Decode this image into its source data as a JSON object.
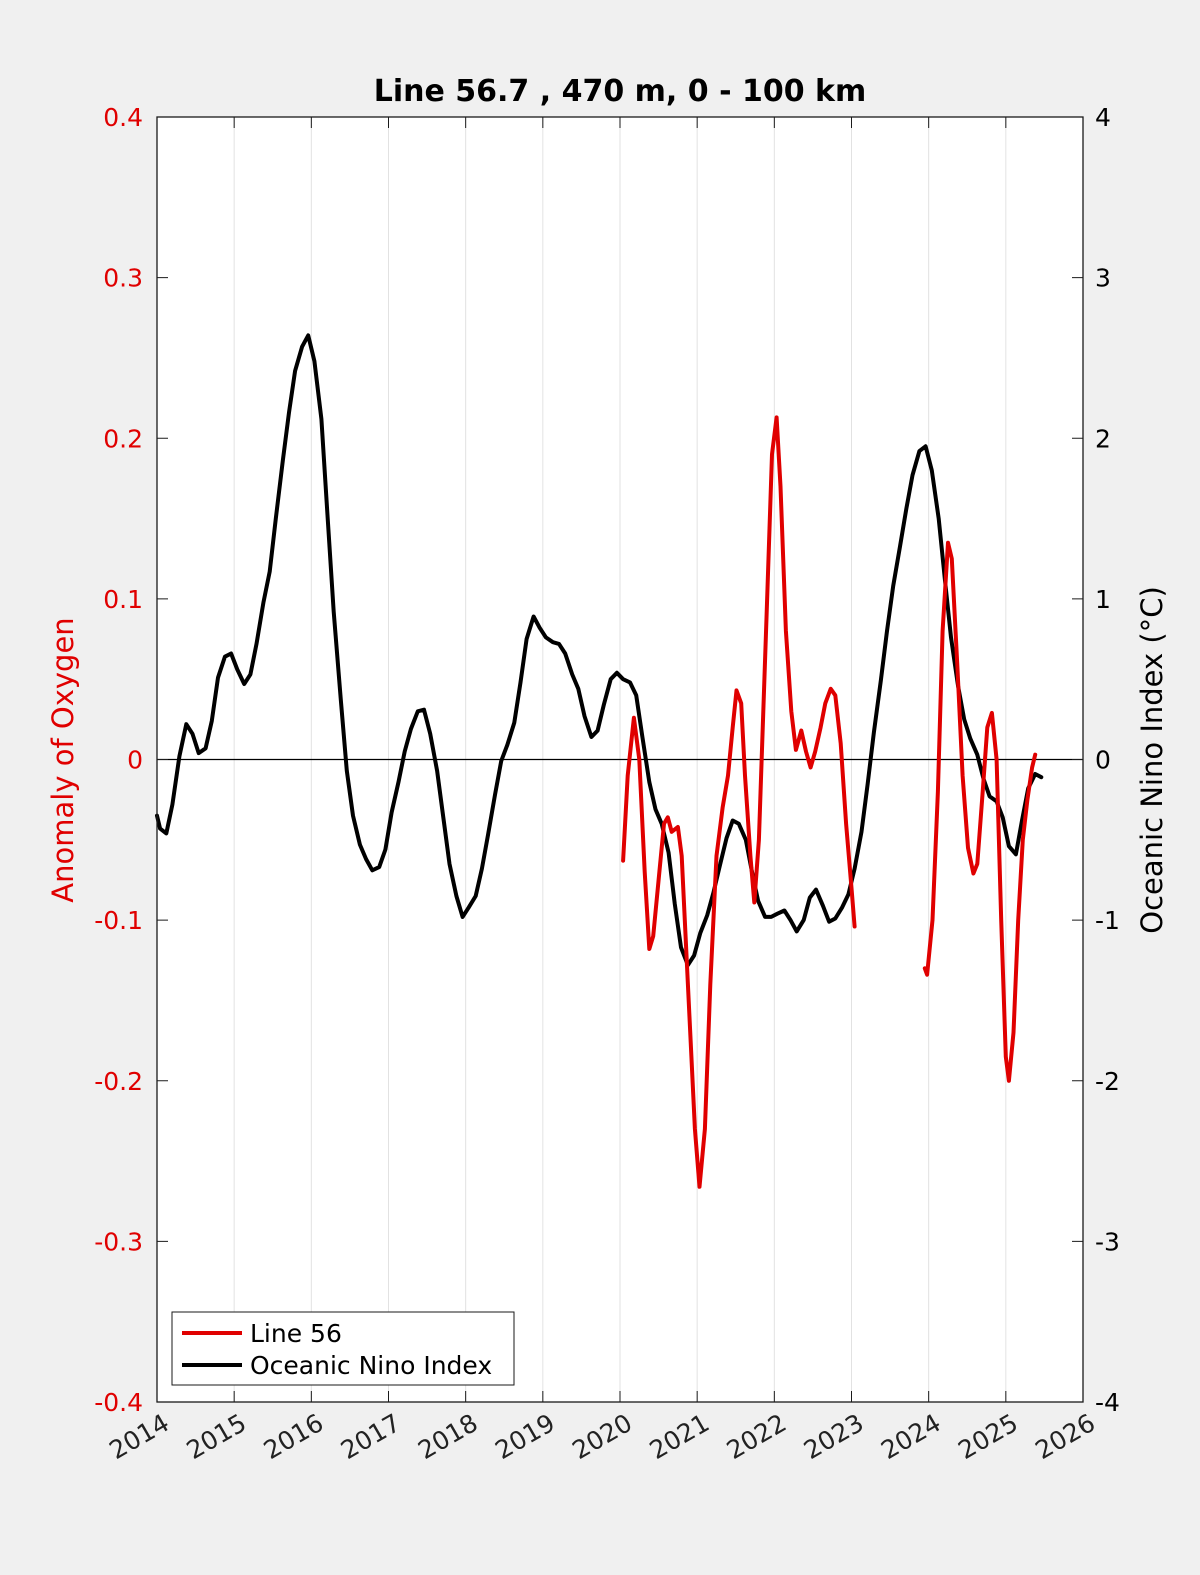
{
  "chart_data": {
    "type": "line",
    "title": "Line 56.7 , 470 m, 0 - 100 km",
    "ylabel_left": "Anomaly of Oxygen",
    "ylabel_right": "Oceanic Nino Index (°C)",
    "xlim": [
      2014,
      2026
    ],
    "ylim_left": [
      -0.4,
      0.4
    ],
    "ylim_right": [
      -4,
      4
    ],
    "x_ticks": [
      "2014",
      "2015",
      "2016",
      "2017",
      "2018",
      "2019",
      "2020",
      "2021",
      "2022",
      "2023",
      "2024",
      "2025",
      "2026"
    ],
    "y_left_ticks": [
      "-0.4",
      "-0.3",
      "-0.2",
      "-0.1",
      "0",
      "0.1",
      "0.2",
      "0.3",
      "0.4"
    ],
    "y_right_ticks": [
      "-4",
      "-3",
      "-2",
      "-1",
      "0",
      "1",
      "2",
      "3",
      "4"
    ],
    "grid": "vertical",
    "zero_line": true,
    "legend_position": "bottom-left",
    "colors": {
      "line56": "#e00000",
      "oni": "#000000",
      "left_axis": "#e00000"
    },
    "series": [
      {
        "name": "Line 56",
        "axis": "left",
        "color": "#e00000",
        "segments": [
          [
            [
              2020.04,
              -0.063
            ],
            [
              2020.1,
              -0.01
            ],
            [
              2020.18,
              0.026
            ],
            [
              2020.25,
              0.0
            ],
            [
              2020.32,
              -0.07
            ],
            [
              2020.38,
              -0.118
            ],
            [
              2020.43,
              -0.11
            ],
            [
              2020.5,
              -0.075
            ],
            [
              2020.57,
              -0.04
            ],
            [
              2020.62,
              -0.036
            ],
            [
              2020.67,
              -0.045
            ],
            [
              2020.75,
              -0.042
            ],
            [
              2020.8,
              -0.06
            ],
            [
              2020.88,
              -0.14
            ],
            [
              2020.97,
              -0.23
            ],
            [
              2021.03,
              -0.266
            ],
            [
              2021.1,
              -0.23
            ],
            [
              2021.17,
              -0.14
            ],
            [
              2021.25,
              -0.06
            ],
            [
              2021.33,
              -0.03
            ],
            [
              2021.4,
              -0.01
            ],
            [
              2021.46,
              0.02
            ],
            [
              2021.51,
              0.043
            ],
            [
              2021.57,
              0.035
            ],
            [
              2021.62,
              -0.01
            ],
            [
              2021.69,
              -0.06
            ],
            [
              2021.74,
              -0.089
            ],
            [
              2021.8,
              -0.05
            ],
            [
              2021.9,
              0.09
            ],
            [
              2021.97,
              0.19
            ],
            [
              2022.03,
              0.213
            ],
            [
              2022.08,
              0.17
            ],
            [
              2022.15,
              0.08
            ],
            [
              2022.22,
              0.03
            ],
            [
              2022.28,
              0.006
            ],
            [
              2022.35,
              0.018
            ],
            [
              2022.41,
              0.005
            ],
            [
              2022.47,
              -0.005
            ],
            [
              2022.53,
              0.005
            ],
            [
              2022.6,
              0.02
            ],
            [
              2022.66,
              0.035
            ],
            [
              2022.73,
              0.044
            ],
            [
              2022.79,
              0.04
            ],
            [
              2022.86,
              0.01
            ],
            [
              2022.93,
              -0.04
            ],
            [
              2023.0,
              -0.08
            ],
            [
              2023.04,
              -0.104
            ]
          ],
          [
            [
              2023.95,
              -0.13
            ],
            [
              2023.98,
              -0.134
            ],
            [
              2024.05,
              -0.1
            ],
            [
              2024.12,
              -0.02
            ],
            [
              2024.18,
              0.08
            ],
            [
              2024.25,
              0.135
            ],
            [
              2024.3,
              0.125
            ],
            [
              2024.37,
              0.06
            ],
            [
              2024.44,
              -0.01
            ],
            [
              2024.51,
              -0.055
            ],
            [
              2024.58,
              -0.071
            ],
            [
              2024.63,
              -0.065
            ],
            [
              2024.7,
              -0.02
            ],
            [
              2024.76,
              0.02
            ],
            [
              2024.82,
              0.029
            ],
            [
              2024.88,
              0.0
            ],
            [
              2024.94,
              -0.1
            ],
            [
              2025.0,
              -0.185
            ],
            [
              2025.04,
              -0.2
            ],
            [
              2025.1,
              -0.17
            ],
            [
              2025.16,
              -0.1
            ],
            [
              2025.22,
              -0.05
            ],
            [
              2025.28,
              -0.025
            ],
            [
              2025.34,
              -0.005
            ],
            [
              2025.38,
              0.003
            ]
          ]
        ]
      },
      {
        "name": "Oceanic Nino Index",
        "axis": "right",
        "color": "#000000",
        "segments": [
          [
            [
              2014.0,
              -0.35
            ],
            [
              2014.04,
              -0.43
            ],
            [
              2014.12,
              -0.46
            ],
            [
              2014.2,
              -0.28
            ],
            [
              2014.29,
              0.02
            ],
            [
              2014.38,
              0.22
            ],
            [
              2014.46,
              0.16
            ],
            [
              2014.54,
              0.04
            ],
            [
              2014.63,
              0.07
            ],
            [
              2014.71,
              0.24
            ],
            [
              2014.79,
              0.51
            ],
            [
              2014.88,
              0.64
            ],
            [
              2014.96,
              0.66
            ],
            [
              2015.04,
              0.56
            ],
            [
              2015.13,
              0.47
            ],
            [
              2015.21,
              0.53
            ],
            [
              2015.29,
              0.72
            ],
            [
              2015.38,
              0.98
            ],
            [
              2015.46,
              1.17
            ],
            [
              2015.54,
              1.5
            ],
            [
              2015.63,
              1.86
            ],
            [
              2015.71,
              2.16
            ],
            [
              2015.79,
              2.42
            ],
            [
              2015.88,
              2.57
            ],
            [
              2015.96,
              2.64
            ],
            [
              2016.04,
              2.48
            ],
            [
              2016.13,
              2.12
            ],
            [
              2016.21,
              1.52
            ],
            [
              2016.29,
              0.92
            ],
            [
              2016.38,
              0.38
            ],
            [
              2016.46,
              -0.07
            ],
            [
              2016.54,
              -0.35
            ],
            [
              2016.63,
              -0.53
            ],
            [
              2016.71,
              -0.62
            ],
            [
              2016.79,
              -0.69
            ],
            [
              2016.88,
              -0.67
            ],
            [
              2016.96,
              -0.56
            ],
            [
              2017.04,
              -0.33
            ],
            [
              2017.13,
              -0.14
            ],
            [
              2017.21,
              0.05
            ],
            [
              2017.29,
              0.19
            ],
            [
              2017.38,
              0.3
            ],
            [
              2017.46,
              0.31
            ],
            [
              2017.54,
              0.16
            ],
            [
              2017.63,
              -0.07
            ],
            [
              2017.71,
              -0.36
            ],
            [
              2017.79,
              -0.65
            ],
            [
              2017.88,
              -0.85
            ],
            [
              2017.96,
              -0.98
            ],
            [
              2018.04,
              -0.92
            ],
            [
              2018.13,
              -0.85
            ],
            [
              2018.21,
              -0.68
            ],
            [
              2018.29,
              -0.47
            ],
            [
              2018.38,
              -0.22
            ],
            [
              2018.46,
              -0.01
            ],
            [
              2018.54,
              0.09
            ],
            [
              2018.63,
              0.23
            ],
            [
              2018.71,
              0.48
            ],
            [
              2018.79,
              0.75
            ],
            [
              2018.88,
              0.89
            ],
            [
              2018.96,
              0.82
            ],
            [
              2019.04,
              0.76
            ],
            [
              2019.13,
              0.73
            ],
            [
              2019.21,
              0.72
            ],
            [
              2019.29,
              0.66
            ],
            [
              2019.38,
              0.53
            ],
            [
              2019.46,
              0.44
            ],
            [
              2019.54,
              0.27
            ],
            [
              2019.63,
              0.14
            ],
            [
              2019.71,
              0.18
            ],
            [
              2019.79,
              0.34
            ],
            [
              2019.88,
              0.5
            ],
            [
              2019.96,
              0.54
            ],
            [
              2020.04,
              0.5
            ],
            [
              2020.13,
              0.48
            ],
            [
              2020.21,
              0.4
            ],
            [
              2020.29,
              0.14
            ],
            [
              2020.38,
              -0.14
            ],
            [
              2020.46,
              -0.31
            ],
            [
              2020.54,
              -0.4
            ],
            [
              2020.63,
              -0.58
            ],
            [
              2020.71,
              -0.9
            ],
            [
              2020.79,
              -1.17
            ],
            [
              2020.88,
              -1.28
            ],
            [
              2020.96,
              -1.22
            ],
            [
              2021.04,
              -1.08
            ],
            [
              2021.13,
              -0.97
            ],
            [
              2021.21,
              -0.83
            ],
            [
              2021.29,
              -0.67
            ],
            [
              2021.38,
              -0.49
            ],
            [
              2021.46,
              -0.38
            ],
            [
              2021.54,
              -0.4
            ],
            [
              2021.63,
              -0.5
            ],
            [
              2021.71,
              -0.7
            ],
            [
              2021.79,
              -0.88
            ],
            [
              2021.88,
              -0.98
            ],
            [
              2021.96,
              -0.98
            ],
            [
              2022.04,
              -0.96
            ],
            [
              2022.13,
              -0.94
            ],
            [
              2022.21,
              -1.0
            ],
            [
              2022.29,
              -1.07
            ],
            [
              2022.38,
              -1.0
            ],
            [
              2022.46,
              -0.86
            ],
            [
              2022.54,
              -0.81
            ],
            [
              2022.63,
              -0.91
            ],
            [
              2022.71,
              -1.01
            ],
            [
              2022.79,
              -0.99
            ],
            [
              2022.88,
              -0.92
            ],
            [
              2022.96,
              -0.84
            ],
            [
              2023.04,
              -0.68
            ],
            [
              2023.13,
              -0.45
            ],
            [
              2023.21,
              -0.15
            ],
            [
              2023.29,
              0.17
            ],
            [
              2023.38,
              0.49
            ],
            [
              2023.46,
              0.8
            ],
            [
              2023.54,
              1.08
            ],
            [
              2023.63,
              1.33
            ],
            [
              2023.71,
              1.56
            ],
            [
              2023.79,
              1.77
            ],
            [
              2023.88,
              1.92
            ],
            [
              2023.96,
              1.95
            ],
            [
              2024.04,
              1.8
            ],
            [
              2024.13,
              1.5
            ],
            [
              2024.21,
              1.12
            ],
            [
              2024.29,
              0.76
            ],
            [
              2024.38,
              0.46
            ],
            [
              2024.46,
              0.25
            ],
            [
              2024.54,
              0.13
            ],
            [
              2024.63,
              0.03
            ],
            [
              2024.71,
              -0.12
            ],
            [
              2024.79,
              -0.23
            ],
            [
              2024.88,
              -0.26
            ],
            [
              2024.96,
              -0.36
            ],
            [
              2025.04,
              -0.54
            ],
            [
              2025.13,
              -0.59
            ],
            [
              2025.21,
              -0.38
            ],
            [
              2025.29,
              -0.18
            ],
            [
              2025.38,
              -0.09
            ],
            [
              2025.46,
              -0.11
            ]
          ]
        ]
      }
    ]
  }
}
